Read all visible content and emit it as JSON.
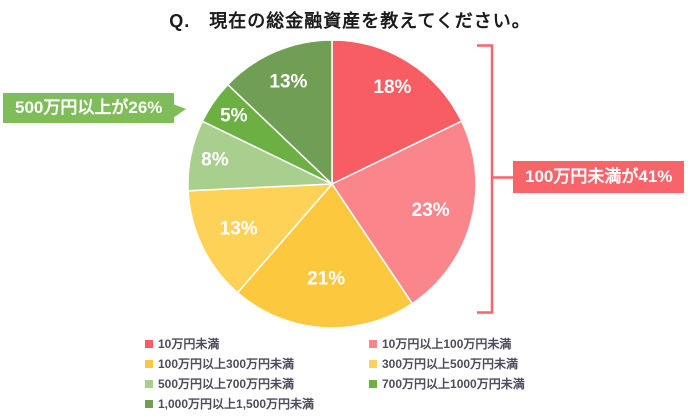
{
  "title": "Q.　現在の総金融資産を教えてください。",
  "chart_data": {
    "type": "pie",
    "title": "Q.　現在の総金融資産を教えてください。",
    "start_angle_deg": 0,
    "direction": "clockwise",
    "legend_position": "bottom",
    "grid": false,
    "segments": [
      {
        "label": "10万円未満",
        "value": 18,
        "display": "18%",
        "color": "#f85d63"
      },
      {
        "label": "10万円以上100万円未満",
        "value": 23,
        "display": "23%",
        "color": "#fa868c"
      },
      {
        "label": "100万円以上300万円未満",
        "value": 21,
        "display": "21%",
        "color": "#fcc93e"
      },
      {
        "label": "300万円以上500万円未満",
        "value": 13,
        "display": "13%",
        "color": "#fdd257"
      },
      {
        "label": "500万円以上700万円未満",
        "value": 8,
        "display": "8%",
        "color": "#a9cf8e"
      },
      {
        "label": "700万円以上1000万円未満",
        "value": 5,
        "display": "5%",
        "color": "#6cb043"
      },
      {
        "label": "1,000万円以上1,500万円未満",
        "value": 13,
        "display": "13%",
        "color": "#709e54"
      }
    ],
    "annotations": [
      {
        "text": "500万円以上が26%",
        "color": "#7ebd59",
        "side": "left"
      },
      {
        "text": "100万円未満が41%",
        "color": "#f9646b",
        "side": "right"
      }
    ]
  }
}
